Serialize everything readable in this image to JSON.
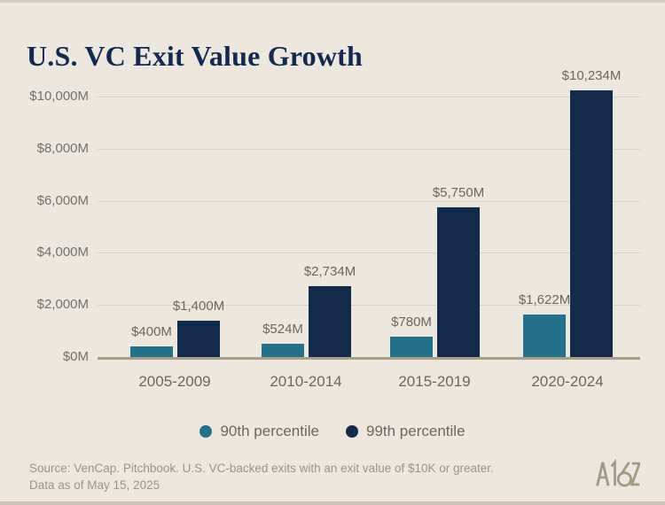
{
  "title": "U.S. VC Exit Value Growth",
  "colors": {
    "background": "#EDE8DF",
    "teal": "#26718A",
    "navy": "#142A4B",
    "title_text": "#14294D",
    "label_text": "#6B675F",
    "grid_line": "#DBD5C8",
    "axis_line": "#A89E8C",
    "footer_text": "#9C9386",
    "logo": "#A29A88"
  },
  "chart_data": {
    "type": "bar",
    "title": "U.S. VC Exit Value Growth",
    "categories": [
      "2005-2009",
      "2010-2014",
      "2015-2019",
      "2020-2024"
    ],
    "series": [
      {
        "name": "90th percentile",
        "color_key": "teal",
        "values": [
          400,
          524,
          780,
          1622
        ],
        "labels": [
          "$400M",
          "$524M",
          "$780M",
          "$1,622M"
        ]
      },
      {
        "name": "99th percentile",
        "color_key": "navy",
        "values": [
          1400,
          2734,
          5750,
          10234
        ],
        "labels": [
          "$1,400M",
          "$2,734M",
          "$5,750M",
          "$10,234M"
        ]
      }
    ],
    "xlabel": "",
    "ylabel": "",
    "ylim": [
      0,
      10000
    ],
    "y_ticks": [
      {
        "value": 0,
        "label": "$0M"
      },
      {
        "value": 2000,
        "label": "$2,000M"
      },
      {
        "value": 4000,
        "label": "$4,000M"
      },
      {
        "value": 6000,
        "label": "$6,000M"
      },
      {
        "value": 8000,
        "label": "$8,000M"
      },
      {
        "value": 10000,
        "label": "$10,000M"
      }
    ],
    "grid": true,
    "legend_position": "bottom"
  },
  "legend": {
    "items": [
      {
        "label": "90th percentile",
        "color_key": "teal"
      },
      {
        "label": "99th percentile",
        "color_key": "navy"
      }
    ]
  },
  "footer": {
    "source_line1": "Source: VenCap. Pitchbook. U.S. VC-backed exits with an exit value of $10K or greater.",
    "source_line2": "Data as of May 15, 2025",
    "logo_text": "A16Z"
  }
}
